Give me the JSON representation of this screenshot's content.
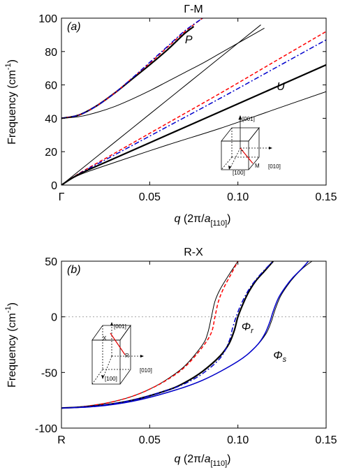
{
  "chart_data": [
    {
      "type": "line",
      "title": "Γ-M",
      "panel_label": "(a)",
      "ylabel": {
        "text": "Frequency (cm",
        "sup": "-1",
        "tail": ")"
      },
      "xlabel": {
        "q": "q",
        "pre": " (2π/",
        "a": "a",
        "sub": "[110]",
        "post": ")"
      },
      "xlim": [
        0,
        0.15
      ],
      "ylim": [
        0,
        100
      ],
      "x_ticks": [
        {
          "v": 0,
          "label": "Γ"
        },
        {
          "v": 0.05,
          "label": "0.05"
        },
        {
          "v": 0.1,
          "label": "0.10"
        },
        {
          "v": 0.15,
          "label": "0.15"
        }
      ],
      "y_ticks": [
        {
          "v": 0,
          "label": "0"
        },
        {
          "v": 20,
          "label": "20"
        },
        {
          "v": 40,
          "label": "40"
        },
        {
          "v": 60,
          "label": "60"
        },
        {
          "v": 80,
          "label": "80"
        },
        {
          "v": 100,
          "label": "100"
        }
      ],
      "curve_labels": [
        {
          "text": "P",
          "x": 0.07,
          "y": 85
        },
        {
          "text": "U",
          "x": 0.122,
          "y": 57
        }
      ],
      "inset": {
        "labels": [
          "[001]",
          "[010]",
          "[100]",
          "Γ",
          "M"
        ]
      },
      "series": [
        {
          "color": "#000000",
          "style": "solid",
          "width": 2.2,
          "x": [
            0,
            0.01,
            0.02,
            0.03,
            0.04,
            0.05,
            0.06,
            0.065,
            0.07,
            0.075
          ],
          "y": [
            40,
            42,
            47.5,
            55,
            63.5,
            72,
            81,
            86,
            91,
            95
          ]
        },
        {
          "color": "#ff0000",
          "style": "dashed",
          "width": 1.5,
          "x": [
            0,
            0.01,
            0.02,
            0.03,
            0.04,
            0.05,
            0.06,
            0.07,
            0.08
          ],
          "y": [
            40,
            42,
            47.5,
            55,
            64,
            73,
            82.5,
            92,
            100
          ]
        },
        {
          "color": "#0000cc",
          "style": "dashdot",
          "width": 1.5,
          "x": [
            0,
            0.01,
            0.02,
            0.03,
            0.04,
            0.05,
            0.06,
            0.07,
            0.08
          ],
          "y": [
            40,
            42,
            47.5,
            55,
            64,
            73.5,
            83,
            92.5,
            100
          ]
        },
        {
          "color": "#000000",
          "style": "solid",
          "width": 1,
          "x": [
            0,
            0.01,
            0.02,
            0.03,
            0.04,
            0.05,
            0.06,
            0.07,
            0.08,
            0.09,
            0.1,
            0.11,
            0.115
          ],
          "y": [
            40,
            41,
            43.5,
            47,
            51.5,
            56.5,
            62,
            67.5,
            73,
            79,
            85,
            91,
            94
          ]
        },
        {
          "color": "#000000",
          "style": "solid",
          "width": 1,
          "x": [
            0,
            0.02,
            0.04,
            0.06,
            0.08,
            0.1,
            0.113
          ],
          "y": [
            0,
            17,
            34,
            51,
            68,
            85,
            96
          ]
        },
        {
          "color": "#ff0000",
          "style": "dashed",
          "width": 1.5,
          "x": [
            0,
            0.01,
            0.03,
            0.06,
            0.09,
            0.12,
            0.15
          ],
          "y": [
            0,
            7,
            19,
            37,
            55,
            73.5,
            92
          ]
        },
        {
          "color": "#0000cc",
          "style": "dashdot",
          "width": 1.5,
          "x": [
            0,
            0.01,
            0.03,
            0.06,
            0.09,
            0.12,
            0.15
          ],
          "y": [
            0,
            6.8,
            18,
            35,
            52,
            69.5,
            87
          ]
        },
        {
          "color": "#000000",
          "style": "solid",
          "width": 2.2,
          "x": [
            0,
            0.01,
            0.03,
            0.06,
            0.09,
            0.12,
            0.15
          ],
          "y": [
            0,
            6.5,
            16,
            30,
            44,
            58,
            72
          ]
        },
        {
          "color": "#000000",
          "style": "solid",
          "width": 1,
          "x": [
            0,
            0.01,
            0.03,
            0.06,
            0.09,
            0.12,
            0.15
          ],
          "y": [
            0,
            6,
            13.5,
            24,
            34,
            45,
            56
          ]
        }
      ]
    },
    {
      "type": "line",
      "title": "R-X",
      "panel_label": "(b)",
      "ylabel": {
        "text": "Frequency (cm",
        "sup": "-1",
        "tail": ")"
      },
      "xlabel": {
        "q": "q",
        "pre": " (2π/",
        "a": "a",
        "sub": "[110]",
        "post": ")"
      },
      "xlim": [
        0,
        0.15
      ],
      "ylim": [
        -100,
        50
      ],
      "zero_line": true,
      "x_ticks": [
        {
          "v": 0,
          "label": "R"
        },
        {
          "v": 0.05,
          "label": "0.05"
        },
        {
          "v": 0.1,
          "label": "0.10"
        },
        {
          "v": 0.15,
          "label": "0.15"
        }
      ],
      "y_ticks": [
        {
          "v": -100,
          "label": "-100"
        },
        {
          "v": -50,
          "label": "-50"
        },
        {
          "v": 0,
          "label": "0"
        },
        {
          "v": 50,
          "label": "50"
        }
      ],
      "curve_labels": [
        {
          "text": "Φ",
          "sub": "r",
          "x": 0.102,
          "y": -12
        },
        {
          "text": "Φ",
          "sub": "s",
          "x": 0.12,
          "y": -38
        }
      ],
      "inset": {
        "labels": [
          "[001]",
          "[010]",
          "[100]",
          "X",
          "R"
        ]
      },
      "series": [
        {
          "color": "#000000",
          "style": "solid",
          "width": 1,
          "x": [
            0,
            0.01,
            0.02,
            0.03,
            0.04,
            0.05,
            0.06,
            0.07,
            0.08,
            0.083,
            0.085,
            0.087,
            0.09,
            0.095,
            0.1
          ],
          "y": [
            -82,
            -81,
            -79,
            -76,
            -71.5,
            -65,
            -56,
            -44,
            -25,
            -14,
            0,
            14,
            25,
            38,
            50
          ]
        },
        {
          "color": "#ff0000",
          "style": "dashed",
          "width": 1.5,
          "x": [
            0,
            0.01,
            0.02,
            0.03,
            0.04,
            0.05,
            0.06,
            0.07,
            0.08,
            0.085,
            0.087,
            0.089,
            0.092,
            0.096,
            0.1
          ],
          "y": [
            -82,
            -81,
            -79,
            -76,
            -71.5,
            -65,
            -56.5,
            -45,
            -27,
            -14,
            0,
            14,
            26,
            38,
            50
          ]
        },
        {
          "color": "#000000",
          "style": "solid",
          "width": 2.2,
          "x": [
            0,
            0.02,
            0.04,
            0.06,
            0.07,
            0.08,
            0.09,
            0.095,
            0.098,
            0.1,
            0.103,
            0.106,
            0.11,
            0.115,
            0.12
          ],
          "y": [
            -82,
            -80,
            -75,
            -66,
            -59,
            -49,
            -35,
            -24,
            -12,
            0,
            12,
            22,
            32,
            41,
            50
          ]
        },
        {
          "color": "#0000cc",
          "style": "dashdot",
          "width": 1.5,
          "x": [
            0,
            0.02,
            0.04,
            0.06,
            0.07,
            0.08,
            0.09,
            0.095,
            0.097,
            0.099,
            0.102,
            0.106,
            0.11,
            0.115,
            0.12
          ],
          "y": [
            -82,
            -80,
            -75,
            -66,
            -60,
            -51,
            -37,
            -22,
            -10,
            0,
            12,
            24,
            33,
            42,
            50
          ]
        },
        {
          "color": "#000000",
          "style": "solid",
          "width": 1,
          "x": [
            0,
            0.02,
            0.04,
            0.06,
            0.08,
            0.1,
            0.11,
            0.116,
            0.119,
            0.121,
            0.124,
            0.128,
            0.132,
            0.137,
            0.142
          ],
          "y": [
            -82,
            -80.5,
            -76,
            -68,
            -57,
            -40,
            -27,
            -15,
            -4,
            6,
            18,
            28,
            36,
            44,
            50
          ]
        },
        {
          "color": "#0000cc",
          "style": "solid",
          "width": 1.5,
          "x": [
            0,
            0.02,
            0.04,
            0.06,
            0.08,
            0.1,
            0.11,
            0.115,
            0.118,
            0.12,
            0.123,
            0.127,
            0.131,
            0.136,
            0.14
          ],
          "y": [
            -82,
            -80.5,
            -76,
            -68,
            -57,
            -40,
            -27,
            -16,
            -5,
            5,
            17,
            27,
            35,
            43,
            50
          ]
        }
      ]
    }
  ]
}
